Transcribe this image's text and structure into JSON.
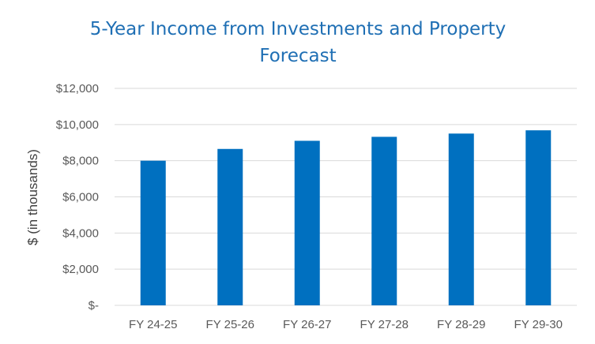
{
  "chart_data": {
    "type": "bar",
    "title": [
      "5-Year Income from Investments and Property",
      "Forecast"
    ],
    "xlabel": "",
    "ylabel": "$ (in thousands)",
    "categories": [
      "FY 24-25",
      "FY 25-26",
      "FY 26-27",
      "FY 27-28",
      "FY 28-29",
      "FY 29-30"
    ],
    "values": [
      8000,
      8650,
      9100,
      9320,
      9500,
      9680
    ],
    "ylim": [
      0,
      12000
    ],
    "yticks": [
      0,
      2000,
      4000,
      6000,
      8000,
      10000,
      12000
    ],
    "ytick_labels": [
      "$-",
      "$2,000",
      "$4,000",
      "$6,000",
      "$8,000",
      "$10,000",
      "$12,000"
    ],
    "grid": true,
    "legend": "none",
    "colors": {
      "bar": "#0070C0",
      "title": "#1F6FB4",
      "grid": "#D9D9D9"
    }
  }
}
